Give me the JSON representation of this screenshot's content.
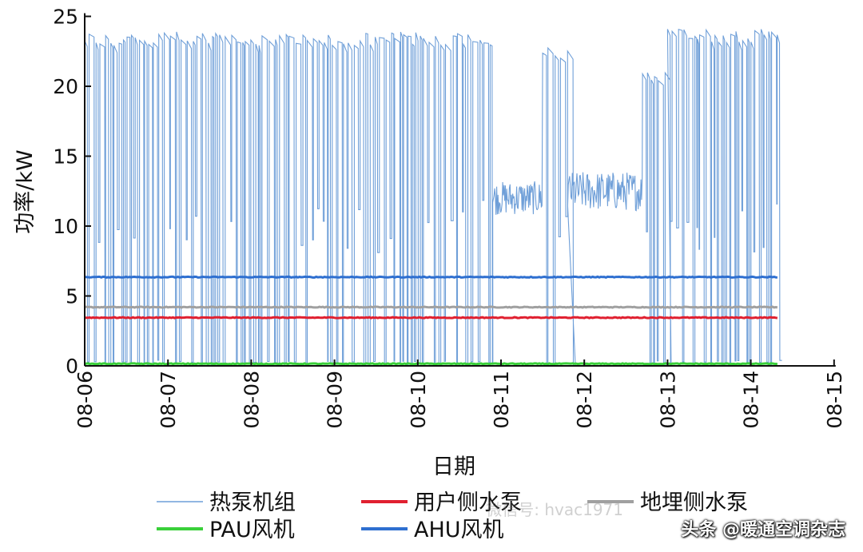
{
  "chart_data": {
    "type": "line",
    "title": "",
    "xlabel": "日期",
    "ylabel": "功率/kW",
    "ylim": [
      0,
      25
    ],
    "yticks": [
      0,
      5,
      10,
      15,
      20,
      25
    ],
    "xlim": [
      "08-06",
      "08-15"
    ],
    "xticks": [
      "08-06",
      "08-07",
      "08-08",
      "08-09",
      "08-10",
      "08-11",
      "08-12",
      "08-13",
      "08-14",
      "08-15"
    ],
    "grid": false,
    "legend_position": "bottom",
    "series": [
      {
        "name": "热泵机组",
        "color": "#6f9fd8",
        "style": "on-off cycling between 0 and ~24 kW; plateau ~11-14 kW on 08-11 to 08-12",
        "x_start": "08-06",
        "x_end": "08-14 08:00",
        "segments": [
          {
            "from": 0.0,
            "to": 4.9,
            "mode": "cycle",
            "high": 23.9
          },
          {
            "from": 4.9,
            "to": 5.5,
            "mode": "noise",
            "mid": 12.0,
            "amp": 1.2
          },
          {
            "from": 5.5,
            "to": 5.8,
            "mode": "cycle",
            "high": 23.0
          },
          {
            "from": 5.8,
            "to": 6.7,
            "mode": "noise",
            "mid": 12.5,
            "amp": 1.4
          },
          {
            "from": 6.7,
            "to": 7.0,
            "mode": "cycle",
            "high": 21.0
          },
          {
            "from": 7.0,
            "to": 8.33,
            "mode": "cycle",
            "high": 24.1
          }
        ]
      },
      {
        "name": "用户侧水泵",
        "color": "#e02030",
        "value": 3.45,
        "x_start": "08-06",
        "x_end": "08-14 08:00"
      },
      {
        "name": "地埋侧水泵",
        "color": "#a0a0a0",
        "value": 4.2,
        "x_start": "08-06",
        "x_end": "08-14 08:00"
      },
      {
        "name": "PAU风机",
        "color": "#3ad03a",
        "value": 0.15,
        "x_start": "08-06",
        "x_end": "08-14 08:00"
      },
      {
        "name": "AHU风机",
        "color": "#2e6fd0",
        "value": 6.35,
        "x_start": "08-06",
        "x_end": "08-14 08:00"
      }
    ]
  },
  "watermark": {
    "text": "头条 @暖通空调杂志",
    "faint_text": "微信号: hvac1971"
  }
}
